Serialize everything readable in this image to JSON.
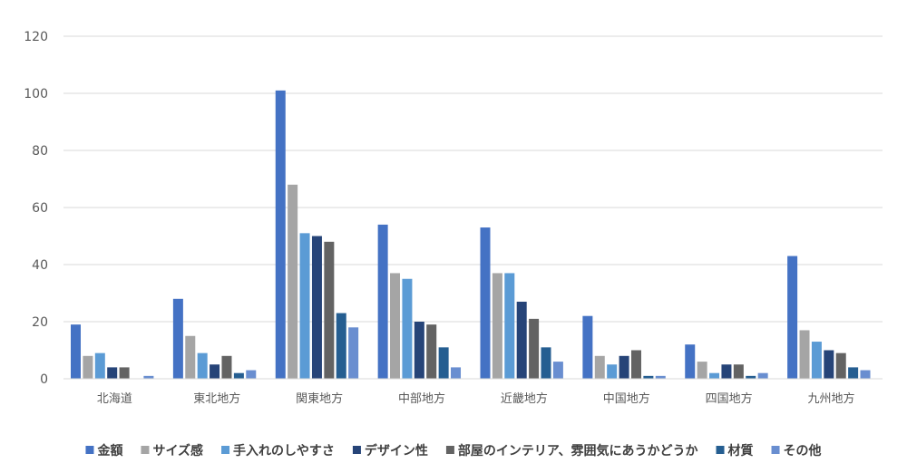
{
  "chart_data": {
    "type": "bar",
    "title": "",
    "xlabel": "",
    "ylabel": "",
    "ylim": [
      0,
      120
    ],
    "yticks": [
      0,
      20,
      40,
      60,
      80,
      100,
      120
    ],
    "grid": true,
    "legend_position": "bottom",
    "categories": [
      "北海道",
      "東北地方",
      "関東地方",
      "中部地方",
      "近畿地方",
      "中国地方",
      "四国地方",
      "九州地方"
    ],
    "series": [
      {
        "name": "金額",
        "color": "#4472C4",
        "values": [
          19,
          28,
          101,
          54,
          53,
          22,
          12,
          43
        ]
      },
      {
        "name": "サイズ感",
        "color": "#A5A5A5",
        "values": [
          8,
          15,
          68,
          37,
          37,
          8,
          6,
          17
        ]
      },
      {
        "name": "手入れのしやすさ",
        "color": "#5B9BD5",
        "values": [
          9,
          9,
          51,
          35,
          37,
          5,
          2,
          13
        ]
      },
      {
        "name": "デザイン性",
        "color": "#264478",
        "values": [
          4,
          5,
          50,
          20,
          27,
          8,
          5,
          10
        ]
      },
      {
        "name": "部屋のインテリア、雰囲気にあうかどうか",
        "color": "#636363",
        "values": [
          4,
          8,
          48,
          19,
          21,
          10,
          5,
          9
        ]
      },
      {
        "name": "材質",
        "color": "#255E91",
        "values": [
          0,
          2,
          23,
          11,
          11,
          1,
          1,
          4
        ]
      },
      {
        "name": "その他",
        "color": "#698ED0",
        "values": [
          1,
          3,
          18,
          4,
          6,
          1,
          2,
          3
        ]
      }
    ]
  }
}
